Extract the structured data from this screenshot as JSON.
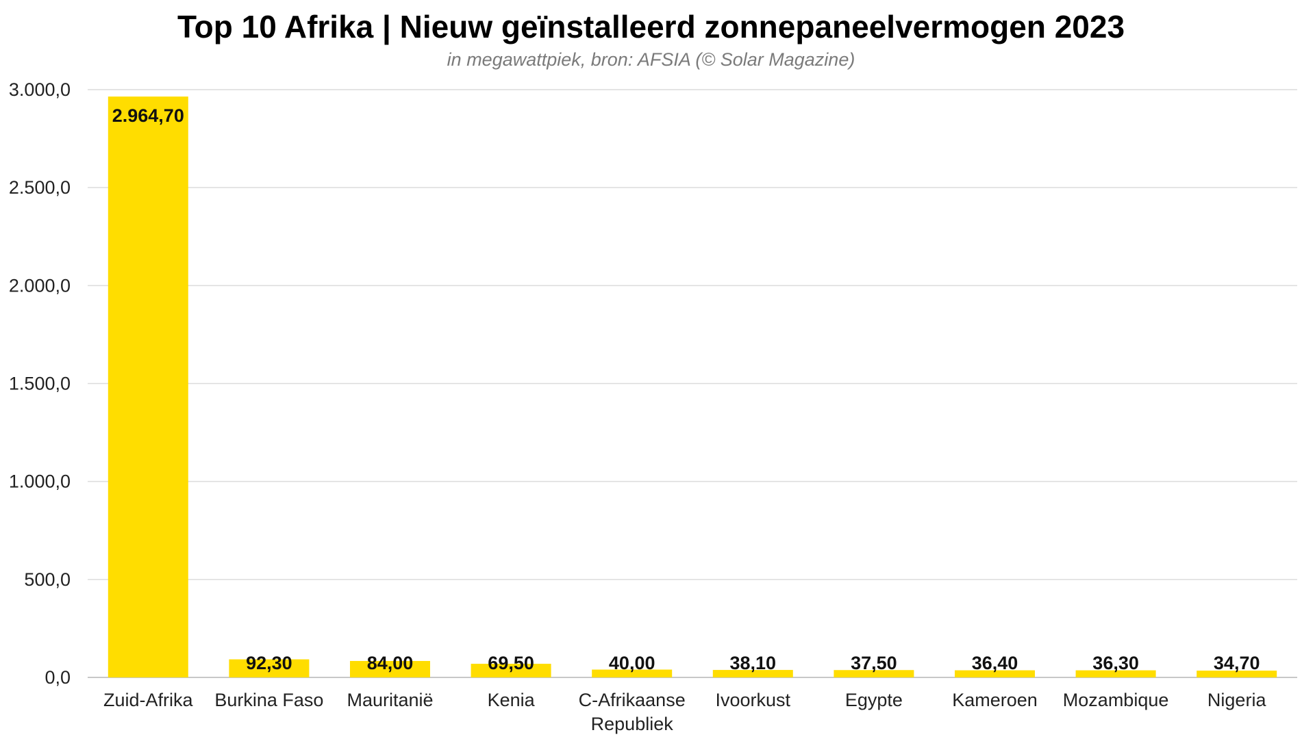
{
  "chart_data": {
    "type": "bar",
    "title": "Top 10 Afrika | Nieuw geïnstalleerd zonnepaneelvermogen 2023",
    "subtitle": "in megawattpiek, bron: AFSIA (© Solar Magazine)",
    "categories": [
      [
        "Zuid-Afrika"
      ],
      [
        "Burkina Faso"
      ],
      [
        "Mauritanië"
      ],
      [
        "Kenia"
      ],
      [
        "C-Afrikaanse",
        "Republiek"
      ],
      [
        "Ivoorkust"
      ],
      [
        "Egypte"
      ],
      [
        "Kameroen"
      ],
      [
        "Mozambique"
      ],
      [
        "Nigeria"
      ]
    ],
    "values": [
      2964.7,
      92.3,
      84.0,
      69.5,
      40.0,
      38.1,
      37.5,
      36.4,
      36.3,
      34.7
    ],
    "value_labels": [
      "2.964,70",
      "92,30",
      "84,00",
      "69,50",
      "40,00",
      "38,10",
      "37,50",
      "36,40",
      "36,30",
      "34,70"
    ],
    "yticks": [
      0,
      500,
      1000,
      1500,
      2000,
      2500,
      3000
    ],
    "ytick_labels": [
      "0,0",
      "500,0",
      "1.000,0",
      "1.500,0",
      "2.000,0",
      "2.500,0",
      "3.000,0"
    ],
    "ylim": [
      0,
      3000
    ],
    "xlabel": "",
    "ylabel": "",
    "grid": true,
    "legend": "none",
    "bar_color": "#FFDD00"
  }
}
